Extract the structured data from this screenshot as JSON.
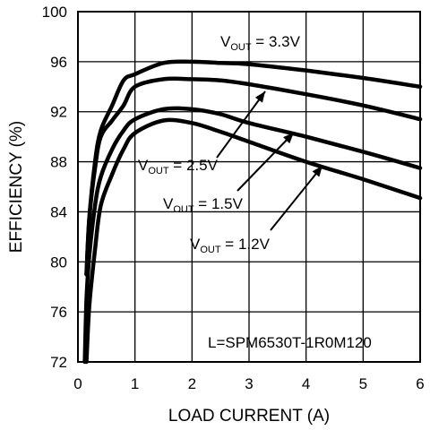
{
  "chart_data": {
    "type": "line",
    "xlabel": "LOAD CURRENT (A)",
    "ylabel": "EFFICIENCY (%)",
    "xlim": [
      0,
      6
    ],
    "ylim": [
      72,
      100
    ],
    "x_ticks": [
      "0",
      "1",
      "2",
      "3",
      "4",
      "5",
      "6"
    ],
    "y_ticks": [
      "72",
      "76",
      "80",
      "84",
      "88",
      "92",
      "96",
      "100"
    ],
    "grid": true,
    "note": "L=SPM6530T-1R0M120",
    "series": [
      {
        "name": "VOUT = 3.3V",
        "label_main": "V",
        "label_sub": "OUT",
        "label_rest": " = 3.3V",
        "x": [
          0.15,
          0.2,
          0.3,
          0.4,
          0.6,
          0.8,
          1.0,
          1.5,
          2.0,
          2.5,
          3.0,
          4.0,
          5.0,
          6.0
        ],
        "y": [
          79.0,
          83.5,
          88.0,
          90.5,
          92.5,
          94.5,
          95.0,
          95.9,
          96.0,
          95.9,
          95.8,
          95.3,
          94.7,
          94.0
        ]
      },
      {
        "name": "VOUT = 2.5V",
        "label_main": "V",
        "label_sub": "OUT",
        "label_rest": " = 2.5V",
        "x": [
          0.15,
          0.2,
          0.3,
          0.4,
          0.6,
          0.8,
          1.0,
          1.5,
          2.0,
          2.5,
          3.0,
          4.0,
          5.0,
          6.0
        ],
        "y": [
          79.0,
          83.5,
          87.5,
          90.0,
          91.3,
          92.5,
          94.0,
          94.6,
          94.6,
          94.5,
          94.2,
          93.4,
          92.5,
          91.4
        ]
      },
      {
        "name": "VOUT = 1.5V",
        "label_main": "V",
        "label_sub": "OUT",
        "label_rest": " = 1.5V",
        "x": [
          0.12,
          0.15,
          0.2,
          0.3,
          0.4,
          0.6,
          0.8,
          1.0,
          1.5,
          2.0,
          2.5,
          3.0,
          4.0,
          5.0,
          6.0
        ],
        "y": [
          72.0,
          77.0,
          80.5,
          84.5,
          86.8,
          89.0,
          90.5,
          91.4,
          92.2,
          92.2,
          91.8,
          91.1,
          90.0,
          88.8,
          87.5
        ]
      },
      {
        "name": "VOUT = 1.2V",
        "label_main": "V",
        "label_sub": "OUT",
        "label_rest": " = 1.2V",
        "x": [
          0.15,
          0.2,
          0.3,
          0.4,
          0.6,
          0.8,
          1.0,
          1.5,
          2.0,
          2.5,
          3.0,
          4.0,
          5.0,
          6.0
        ],
        "y": [
          72.0,
          76.5,
          81.0,
          84.5,
          87.0,
          89.0,
          90.3,
          91.3,
          91.1,
          90.4,
          89.6,
          88.0,
          86.6,
          85.1
        ]
      }
    ]
  }
}
